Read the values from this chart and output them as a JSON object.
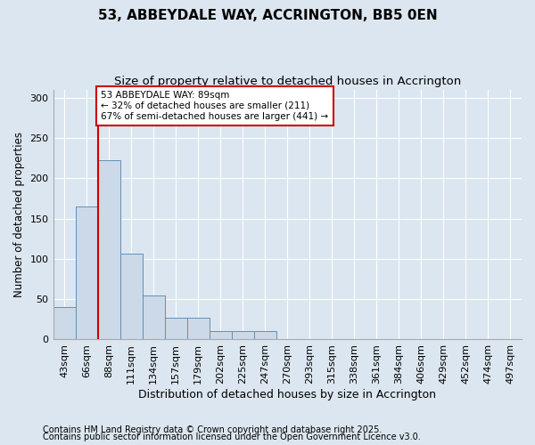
{
  "title1": "53, ABBEYDALE WAY, ACCRINGTON, BB5 0EN",
  "title2": "Size of property relative to detached houses in Accrington",
  "xlabel": "Distribution of detached houses by size in Accrington",
  "ylabel": "Number of detached properties",
  "categories": [
    "43sqm",
    "66sqm",
    "88sqm",
    "111sqm",
    "134sqm",
    "157sqm",
    "179sqm",
    "202sqm",
    "225sqm",
    "247sqm",
    "270sqm",
    "293sqm",
    "315sqm",
    "338sqm",
    "361sqm",
    "384sqm",
    "406sqm",
    "429sqm",
    "452sqm",
    "474sqm",
    "497sqm"
  ],
  "values": [
    40,
    165,
    222,
    107,
    55,
    27,
    27,
    10,
    10,
    10,
    1,
    0,
    0,
    0,
    0,
    0,
    0,
    0,
    0,
    0,
    1
  ],
  "bar_color": "#ccd9e8",
  "bar_edge_color": "#6090b8",
  "vline_x": 1.5,
  "vline_color": "#cc0000",
  "annotation_text": "53 ABBEYDALE WAY: 89sqm\n← 32% of detached houses are smaller (211)\n67% of semi-detached houses are larger (441) →",
  "annotation_box_color": "#ffffff",
  "annotation_box_edge": "#cc0000",
  "ylim": [
    0,
    310
  ],
  "yticks": [
    0,
    50,
    100,
    150,
    200,
    250,
    300
  ],
  "footer1": "Contains HM Land Registry data © Crown copyright and database right 2025.",
  "footer2": "Contains public sector information licensed under the Open Government Licence v3.0.",
  "background_color": "#dce6f0",
  "plot_bg_color": "#dce6f0",
  "title1_fontsize": 11,
  "title2_fontsize": 9.5,
  "xlabel_fontsize": 9,
  "ylabel_fontsize": 8.5,
  "tick_fontsize": 8,
  "footer_fontsize": 7
}
